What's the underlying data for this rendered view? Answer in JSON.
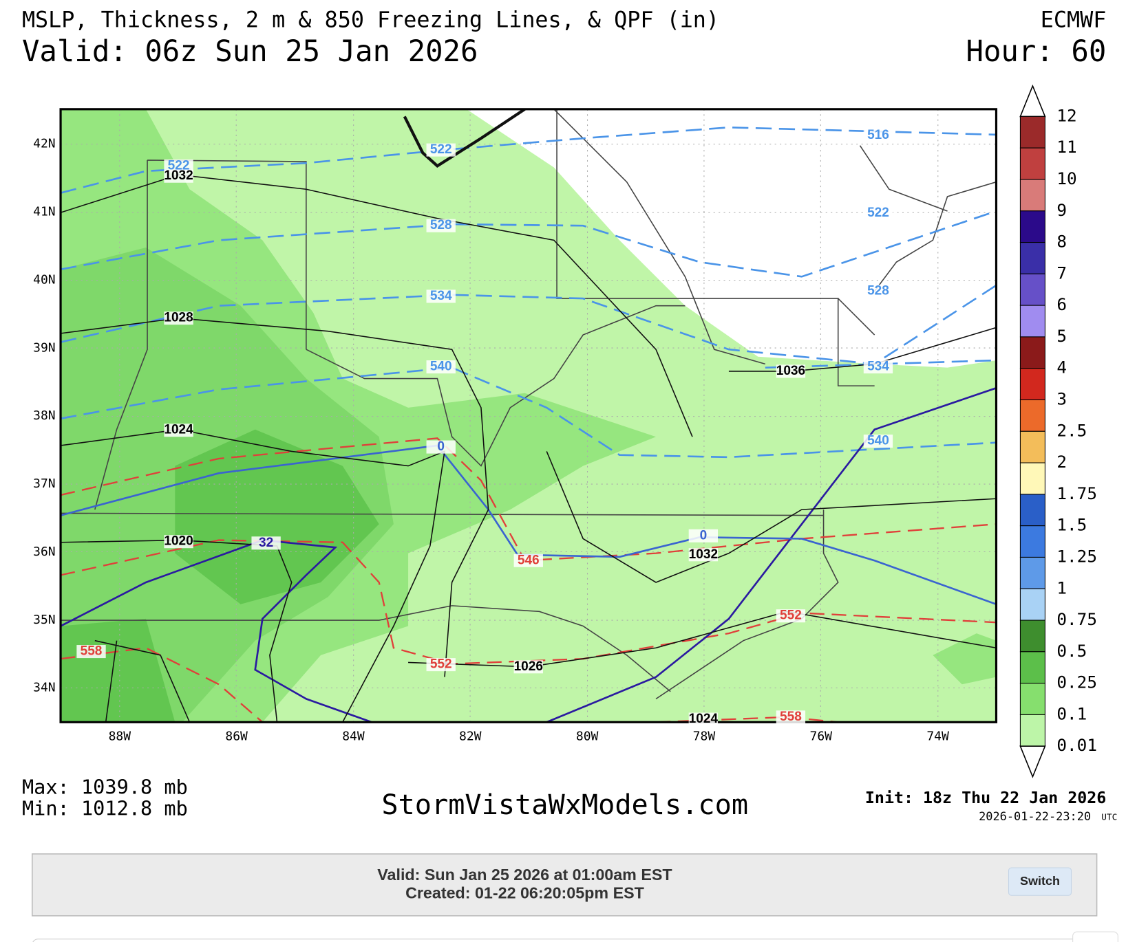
{
  "header": {
    "title": "MSLP, Thickness, 2 m & 850 Freezing Lines, & QPF (in)",
    "model": "ECMWF",
    "valid": "Valid: 06z Sun 25 Jan 2026",
    "hour": "Hour: 60"
  },
  "map": {
    "lat_labels": [
      "42N",
      "41N",
      "40N",
      "39N",
      "38N",
      "37N",
      "36N",
      "35N",
      "34N"
    ],
    "lon_labels": [
      "88W",
      "86W",
      "84W",
      "82W",
      "80W",
      "78W",
      "76W",
      "74W"
    ],
    "contour_labels": [
      "522",
      "1032",
      "522",
      "528",
      "534",
      "540",
      "1028",
      "1024",
      "1020",
      "32",
      "0",
      "546",
      "1032",
      "0",
      "1036",
      "516",
      "522",
      "528",
      "534",
      "540",
      "552",
      "552",
      "1026",
      "558",
      "1024",
      "558"
    ]
  },
  "colorbar": {
    "labels": [
      "12",
      "11",
      "10",
      "9",
      "8",
      "7",
      "6",
      "5",
      "4",
      "3",
      "2.5",
      "2",
      "1.75",
      "1.5",
      "1.25",
      "1",
      "0.75",
      "0.5",
      "0.25",
      "0.1",
      "0.01"
    ],
    "colors": [
      "#9b2a2a",
      "#c0403f",
      "#d97b79",
      "#2b0a8a",
      "#3a2fa8",
      "#6650c8",
      "#a08cf0",
      "#8b1a1a",
      "#d2281e",
      "#ec6a2a",
      "#f3bd5a",
      "#fff8b8",
      "#2a5fc8",
      "#3c7ae0",
      "#5e9ae8",
      "#a9d2f5",
      "#3e8e2e",
      "#5cbf4a",
      "#86df6e",
      "#bdf5a8"
    ]
  },
  "stats": {
    "max": "Max: 1039.8 mb",
    "min": "Min: 1012.8 mb"
  },
  "footer": {
    "site": "StormVistaWxModels.com",
    "init": "Init: 18z Thu 22 Jan 2026",
    "timestamp": "2026-01-22-23:20",
    "tz": "UTC"
  },
  "panel": {
    "valid": "Valid: Sun Jan 25 2026 at 01:00am EST",
    "created": "Created: 01-22 06:20:05pm EST",
    "button": "Switch"
  }
}
